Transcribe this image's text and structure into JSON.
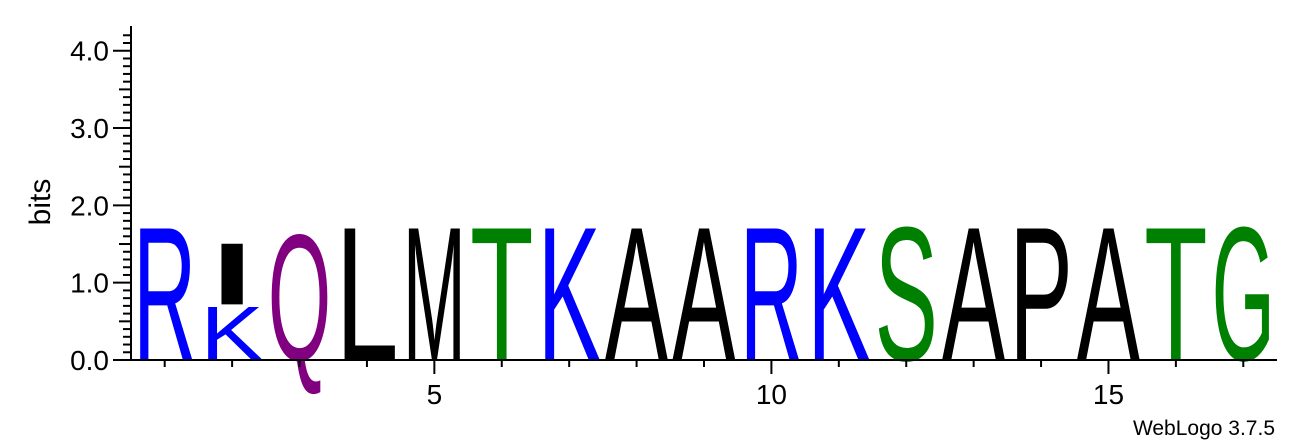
{
  "chart_data": {
    "type": "sequence_logo",
    "ylabel": "bits",
    "ylim": [
      0,
      4.32
    ],
    "yticks": [
      {
        "value": 0,
        "label": "0.0"
      },
      {
        "value": 1,
        "label": "1.0"
      },
      {
        "value": 2,
        "label": "2.0"
      },
      {
        "value": 3,
        "label": "3.0"
      },
      {
        "value": 4,
        "label": "4.0"
      }
    ],
    "xlim": [
      0.5,
      17.5
    ],
    "xticks": [
      {
        "value": 5,
        "label": "5"
      },
      {
        "value": 10,
        "label": "10"
      },
      {
        "value": 15,
        "label": "15"
      }
    ],
    "positions": [
      {
        "pos": 1,
        "stack": [
          {
            "letter": "R",
            "bits": 1.78
          }
        ]
      },
      {
        "pos": 2,
        "stack": [
          {
            "letter": "K",
            "bits": 0.72
          },
          {
            "letter": "I",
            "bits": 0.82
          }
        ]
      },
      {
        "pos": 3,
        "stack": [
          {
            "letter": "Q",
            "bits": 1.68
          }
        ]
      },
      {
        "pos": 4,
        "stack": [
          {
            "letter": "L",
            "bits": 1.78
          }
        ]
      },
      {
        "pos": 5,
        "stack": [
          {
            "letter": "M",
            "bits": 1.78
          }
        ]
      },
      {
        "pos": 6,
        "stack": [
          {
            "letter": "T",
            "bits": 1.78
          }
        ]
      },
      {
        "pos": 7,
        "stack": [
          {
            "letter": "K",
            "bits": 1.78
          }
        ]
      },
      {
        "pos": 8,
        "stack": [
          {
            "letter": "A",
            "bits": 1.78
          }
        ]
      },
      {
        "pos": 9,
        "stack": [
          {
            "letter": "A",
            "bits": 1.78
          }
        ]
      },
      {
        "pos": 10,
        "stack": [
          {
            "letter": "R",
            "bits": 1.78
          }
        ]
      },
      {
        "pos": 11,
        "stack": [
          {
            "letter": "K",
            "bits": 1.78
          }
        ]
      },
      {
        "pos": 12,
        "stack": [
          {
            "letter": "S",
            "bits": 1.78
          }
        ]
      },
      {
        "pos": 13,
        "stack": [
          {
            "letter": "A",
            "bits": 1.78
          }
        ]
      },
      {
        "pos": 14,
        "stack": [
          {
            "letter": "P",
            "bits": 1.78
          }
        ]
      },
      {
        "pos": 15,
        "stack": [
          {
            "letter": "A",
            "bits": 1.78
          }
        ]
      },
      {
        "pos": 16,
        "stack": [
          {
            "letter": "T",
            "bits": 1.78
          }
        ]
      },
      {
        "pos": 17,
        "stack": [
          {
            "letter": "G",
            "bits": 1.78
          }
        ]
      }
    ],
    "colors": {
      "R": "#0000ff",
      "K": "#0000ff",
      "I": "#000000",
      "L": "#000000",
      "M": "#000000",
      "A": "#000000",
      "P": "#000000",
      "Q": "#800080",
      "T": "#008000",
      "S": "#008000",
      "G": "#008000"
    }
  },
  "footer": {
    "credit": "WebLogo 3.7.5"
  }
}
